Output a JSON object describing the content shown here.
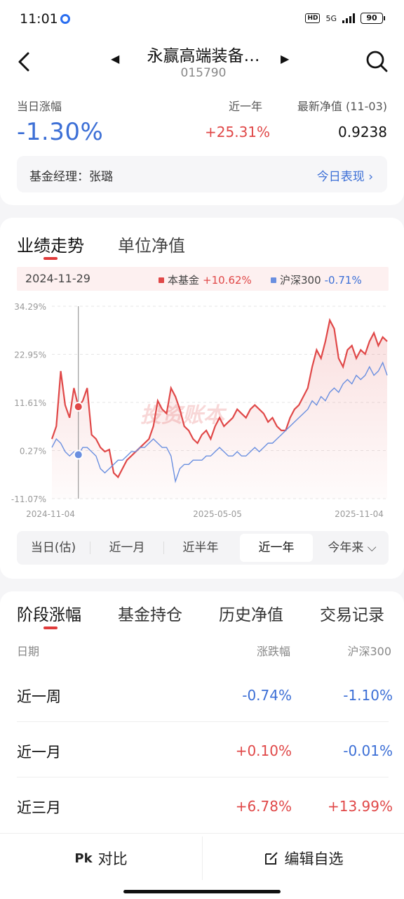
{
  "status": {
    "time": "11:01",
    "hd": "HD",
    "net": "5G",
    "battery": "90"
  },
  "header": {
    "fund_name": "永赢高端装备…",
    "fund_code": "015790",
    "prev_icon": "caret-left-icon",
    "next_icon": "caret-right-icon"
  },
  "metrics": {
    "daily_label": "当日涨幅",
    "daily_value": "-1.30%",
    "year_label": "近一年",
    "year_value": "+25.31%",
    "nav_label": "最新净值 (11-03)",
    "nav_value": "0.9238"
  },
  "manager": {
    "text": "基金经理：张璐",
    "link": "今日表现 ›"
  },
  "chart_tabs": [
    "业绩走势",
    "单位净值"
  ],
  "legend": {
    "date": "2024-11-29",
    "fund_name": "本基金",
    "fund_value": "+10.62%",
    "index_name": "沪深300",
    "index_value": "-0.71%"
  },
  "watermark": "投资账本",
  "chart_data": {
    "type": "line",
    "yticks": [
      "34.29%",
      "22.95%",
      "11.61%",
      "0.27%",
      "-11.07%"
    ],
    "ylim": [
      -11.07,
      34.29
    ],
    "xticks": [
      "2024-11-04",
      "2025-05-05",
      "2025-11-04"
    ],
    "series": [
      {
        "name": "本基金",
        "color": "#e04848",
        "values": [
          3,
          6,
          19,
          11,
          8,
          15,
          10.6,
          12,
          15,
          4,
          3,
          1,
          0,
          0.5,
          -5,
          -6,
          -4,
          -2,
          -1,
          0,
          1,
          2,
          3,
          6,
          12,
          10,
          9,
          15,
          13,
          10,
          6,
          5,
          3,
          2,
          4,
          5,
          3,
          6,
          8,
          6,
          7,
          8,
          10,
          9,
          8,
          10,
          11,
          10,
          9,
          7,
          8,
          6,
          5,
          5,
          8,
          10,
          11,
          13,
          15,
          20,
          24,
          22,
          26,
          31,
          29,
          22,
          20,
          24,
          25,
          22,
          24,
          23,
          26,
          28,
          25,
          27,
          26
        ]
      },
      {
        "name": "沪深300",
        "color": "#6a8fe0",
        "values": [
          1,
          3,
          2,
          0,
          -1,
          0,
          -0.71,
          1,
          1,
          0,
          -1,
          -4,
          -5,
          -4,
          -3,
          -2,
          -2,
          -1,
          0,
          0,
          1,
          1,
          2,
          3,
          2,
          1,
          1,
          -1,
          -7,
          -4,
          -3,
          -3,
          -2,
          -2,
          -2,
          -1,
          -1,
          0,
          1,
          0,
          -1,
          -1,
          0,
          -1,
          -1,
          0,
          1,
          0,
          1,
          2,
          2,
          3,
          4,
          5,
          6,
          7,
          8,
          9,
          10,
          12,
          11,
          13,
          12,
          14,
          15,
          14,
          16,
          17,
          16,
          18,
          17,
          18,
          20,
          18,
          19,
          21,
          18
        ]
      }
    ],
    "marker_index": 6
  },
  "periods": [
    "当日(估)",
    "近一月",
    "近半年",
    "近一年",
    "今年来 ⌵"
  ],
  "active_period": 3,
  "stage_tabs": [
    "阶段涨幅",
    "基金持仓",
    "历史净值",
    "交易记录"
  ],
  "stage_columns": {
    "date": "日期",
    "change": "涨跌幅",
    "index": "沪深300"
  },
  "stage_rows": [
    {
      "label": "近一周",
      "change": "-0.74%",
      "index": "-1.10%"
    },
    {
      "label": "近一月",
      "change": "+0.10%",
      "index": "-0.01%"
    },
    {
      "label": "近三月",
      "change": "+6.78%",
      "index": "+13.99%"
    }
  ],
  "bottom": {
    "compare_icon": "Pk",
    "compare": "对比",
    "edit": "编辑自选"
  }
}
